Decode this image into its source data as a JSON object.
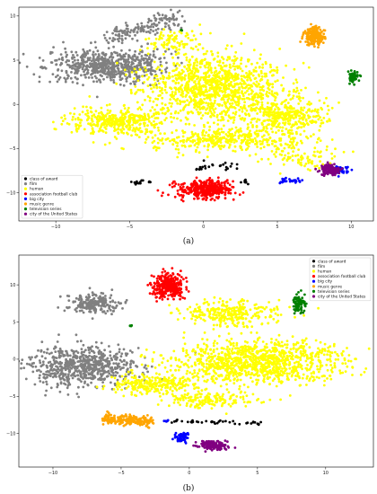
{
  "panels": [
    {
      "caption": "(a)",
      "chart_data": {
        "type": "scatter",
        "title": "",
        "xlabel": "",
        "ylabel": "",
        "xlim": [
          -12.5,
          11.5
        ],
        "ylim": [
          -13.2,
          11.0
        ],
        "xticks": [
          -10,
          -5,
          0,
          5,
          10
        ],
        "yticks": [
          -10,
          -5,
          0,
          5,
          10
        ],
        "grid": false,
        "legend_position": "lower-left",
        "series": [
          {
            "name": "class of award",
            "color": "#000000",
            "clusters": [
              {
                "kind": "line",
                "x0": -4.7,
                "y0": -8.9,
                "x1": -3.6,
                "y1": -8.7,
                "n": 14,
                "spread": 0.15
              },
              {
                "kind": "line",
                "x0": -0.8,
                "y0": -7.2,
                "x1": 2.5,
                "y1": -6.9,
                "n": 24,
                "spread": 0.25
              },
              {
                "kind": "blob",
                "cx": 2.8,
                "cy": -8.4,
                "rx": 0.3,
                "ry": 0.6,
                "n": 8
              }
            ]
          },
          {
            "name": "film",
            "color": "#808080",
            "clusters": [
              {
                "kind": "blob",
                "cx": -6.5,
                "cy": 4.4,
                "rx": 3.6,
                "ry": 1.6,
                "n": 650
              },
              {
                "kind": "line",
                "x0": -6.5,
                "y0": 7.6,
                "x1": -1.6,
                "y1": 9.7,
                "n": 160,
                "spread": 0.55
              },
              {
                "kind": "blob",
                "cx": -10.9,
                "cy": 4.2,
                "rx": 0.2,
                "ry": 0.15,
                "n": 6
              }
            ]
          },
          {
            "name": "human",
            "color": "#ffff00",
            "clusters": [
              {
                "kind": "blob",
                "cx": 0.8,
                "cy": 2.0,
                "rx": 4.2,
                "ry": 3.4,
                "n": 1100
              },
              {
                "kind": "blob",
                "cx": -5.8,
                "cy": -1.9,
                "rx": 3.0,
                "ry": 1.4,
                "n": 380
              },
              {
                "kind": "blob",
                "cx": 5.5,
                "cy": -1.3,
                "rx": 2.6,
                "ry": 2.2,
                "n": 360
              },
              {
                "kind": "blob",
                "cx": 1.2,
                "cy": -4.0,
                "rx": 4.6,
                "ry": 1.2,
                "n": 360
              },
              {
                "kind": "blob",
                "cx": -2.0,
                "cy": 7.0,
                "rx": 1.6,
                "ry": 1.6,
                "n": 90
              },
              {
                "kind": "blob",
                "cx": 6.5,
                "cy": -6.0,
                "rx": 2.2,
                "ry": 1.0,
                "n": 80
              }
            ]
          },
          {
            "name": "association football club",
            "color": "#ff0000",
            "clusters": [
              {
                "kind": "blob",
                "cx": 0.2,
                "cy": -9.6,
                "rx": 1.7,
                "ry": 0.9,
                "n": 360
              }
            ]
          },
          {
            "name": "big city",
            "color": "#0000ff",
            "clusters": [
              {
                "kind": "line",
                "x0": 5.0,
                "y0": -8.7,
                "x1": 6.7,
                "y1": -8.6,
                "n": 30,
                "spread": 0.12
              },
              {
                "kind": "blob",
                "cx": 9.2,
                "cy": -7.5,
                "rx": 0.5,
                "ry": 0.45,
                "n": 55
              }
            ]
          },
          {
            "name": "music genre",
            "color": "#ffa500",
            "clusters": [
              {
                "kind": "blob",
                "cx": 7.5,
                "cy": 7.7,
                "rx": 0.65,
                "ry": 0.9,
                "n": 180
              }
            ]
          },
          {
            "name": "television series",
            "color": "#008000",
            "clusters": [
              {
                "kind": "blob",
                "cx": 10.1,
                "cy": 3.1,
                "rx": 0.3,
                "ry": 0.55,
                "n": 65
              },
              {
                "kind": "blob",
                "cx": -1.5,
                "cy": 8.4,
                "rx": 0.1,
                "ry": 0.08,
                "n": 4
              }
            ]
          },
          {
            "name": "city of the United States",
            "color": "#800080",
            "clusters": [
              {
                "kind": "blob",
                "cx": 8.6,
                "cy": -7.4,
                "rx": 0.6,
                "ry": 0.55,
                "n": 130
              }
            ]
          }
        ]
      }
    },
    {
      "caption": "(b)",
      "chart_data": {
        "type": "scatter",
        "title": "",
        "xlabel": "",
        "ylabel": "",
        "xlim": [
          -12.5,
          13.5
        ],
        "ylim": [
          -14.5,
          14.0
        ],
        "xticks": [
          -10,
          -5,
          0,
          5,
          10
        ],
        "yticks": [
          -10,
          -5,
          0,
          5,
          10
        ],
        "grid": false,
        "legend_position": "top-right",
        "series": [
          {
            "name": "class of award",
            "color": "#000000",
            "clusters": [
              {
                "kind": "line",
                "x0": -1.6,
                "y0": -8.3,
                "x1": 5.3,
                "y1": -8.6,
                "n": 40,
                "spread": 0.12
              }
            ]
          },
          {
            "name": "film",
            "color": "#808080",
            "clusters": [
              {
                "kind": "blob",
                "cx": -8.0,
                "cy": -1.0,
                "rx": 3.8,
                "ry": 2.5,
                "n": 650
              },
              {
                "kind": "blob",
                "cx": -7.0,
                "cy": 7.5,
                "rx": 1.6,
                "ry": 1.2,
                "n": 220
              }
            ]
          },
          {
            "name": "human",
            "color": "#ffff00",
            "clusters": [
              {
                "kind": "blob",
                "cx": 5.0,
                "cy": -0.4,
                "rx": 5.8,
                "ry": 2.6,
                "n": 1100
              },
              {
                "kind": "blob",
                "cx": 3.0,
                "cy": 6.2,
                "rx": 3.2,
                "ry": 1.6,
                "n": 300
              },
              {
                "kind": "blob",
                "cx": -2.6,
                "cy": -3.4,
                "rx": 2.8,
                "ry": 1.2,
                "n": 250
              },
              {
                "kind": "blob",
                "cx": 1.5,
                "cy": -5.5,
                "rx": 3.2,
                "ry": 1.0,
                "n": 160
              }
            ]
          },
          {
            "name": "association football club",
            "color": "#ff0000",
            "clusters": [
              {
                "kind": "blob",
                "cx": -1.5,
                "cy": 9.8,
                "rx": 1.0,
                "ry": 1.5,
                "n": 320
              }
            ]
          },
          {
            "name": "big city",
            "color": "#0000ff",
            "clusters": [
              {
                "kind": "blob",
                "cx": -0.6,
                "cy": -10.5,
                "rx": 0.55,
                "ry": 0.55,
                "n": 55
              },
              {
                "kind": "blob",
                "cx": -1.7,
                "cy": -8.3,
                "rx": 0.2,
                "ry": 0.2,
                "n": 6
              }
            ]
          },
          {
            "name": "music genre",
            "color": "#ffa500",
            "clusters": [
              {
                "kind": "line",
                "x0": -6.2,
                "y0": -8.0,
                "x1": -2.8,
                "y1": -8.4,
                "n": 220,
                "spread": 0.35
              }
            ]
          },
          {
            "name": "television series",
            "color": "#008000",
            "clusters": [
              {
                "kind": "blob",
                "cx": 8.0,
                "cy": 7.4,
                "rx": 0.4,
                "ry": 1.1,
                "n": 90
              },
              {
                "kind": "blob",
                "cx": -4.3,
                "cy": 4.5,
                "rx": 0.12,
                "ry": 0.1,
                "n": 6
              }
            ]
          },
          {
            "name": "city of the United States",
            "color": "#800080",
            "clusters": [
              {
                "kind": "blob",
                "cx": 1.7,
                "cy": -11.6,
                "rx": 1.0,
                "ry": 0.6,
                "n": 150
              }
            ]
          }
        ]
      }
    }
  ]
}
